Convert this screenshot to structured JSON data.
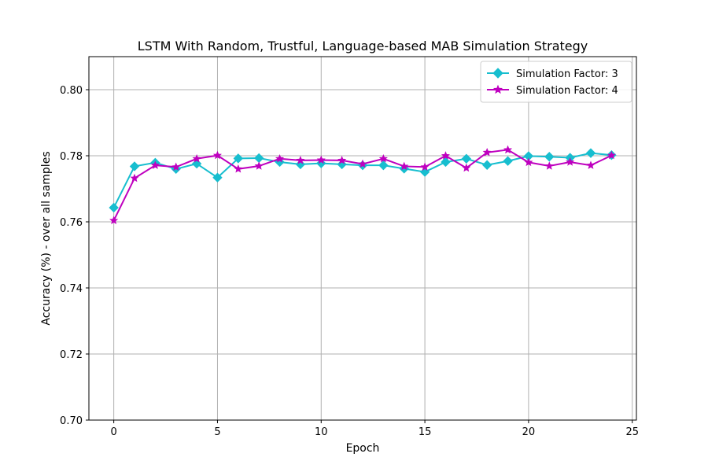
{
  "chart_data": {
    "type": "line",
    "title": "LSTM With Random, Trustful, Language-based MAB Simulation Strategy",
    "xlabel": "Epoch",
    "ylabel": "Accuracy (%) - over all samples",
    "xlim": [
      -1.2,
      25.2
    ],
    "ylim": [
      0.7,
      0.81
    ],
    "xticks": [
      0,
      5,
      10,
      15,
      20,
      25
    ],
    "yticks": [
      0.7,
      0.72,
      0.74,
      0.76,
      0.78,
      0.8
    ],
    "xtick_labels": [
      "0",
      "5",
      "10",
      "15",
      "20",
      "25"
    ],
    "ytick_labels": [
      "0.70",
      "0.72",
      "0.74",
      "0.76",
      "0.78",
      "0.80"
    ],
    "grid": true,
    "legend_position": "top-right",
    "x": [
      0,
      1,
      2,
      3,
      4,
      5,
      6,
      7,
      8,
      9,
      10,
      11,
      12,
      13,
      14,
      15,
      16,
      17,
      18,
      19,
      20,
      21,
      22,
      23,
      24
    ],
    "series": [
      {
        "name": "Simulation Factor: 3",
        "color": "#17becf",
        "marker": "diamond",
        "values": [
          0.7643,
          0.7768,
          0.7779,
          0.776,
          0.7776,
          0.7734,
          0.7792,
          0.7793,
          0.7781,
          0.7774,
          0.7777,
          0.7774,
          0.7771,
          0.7771,
          0.7761,
          0.7751,
          0.7781,
          0.7791,
          0.7772,
          0.7784,
          0.7799,
          0.7797,
          0.7794,
          0.7808,
          0.7802
        ]
      },
      {
        "name": "Simulation Factor: 4",
        "color": "#bf00bf",
        "marker": "star",
        "values": [
          0.7604,
          0.7732,
          0.7771,
          0.7766,
          0.7791,
          0.7801,
          0.776,
          0.7769,
          0.7791,
          0.7786,
          0.7787,
          0.7786,
          0.7775,
          0.7791,
          0.7768,
          0.7766,
          0.78,
          0.7763,
          0.781,
          0.7818,
          0.778,
          0.7769,
          0.7781,
          0.7771,
          0.7801
        ]
      }
    ]
  }
}
